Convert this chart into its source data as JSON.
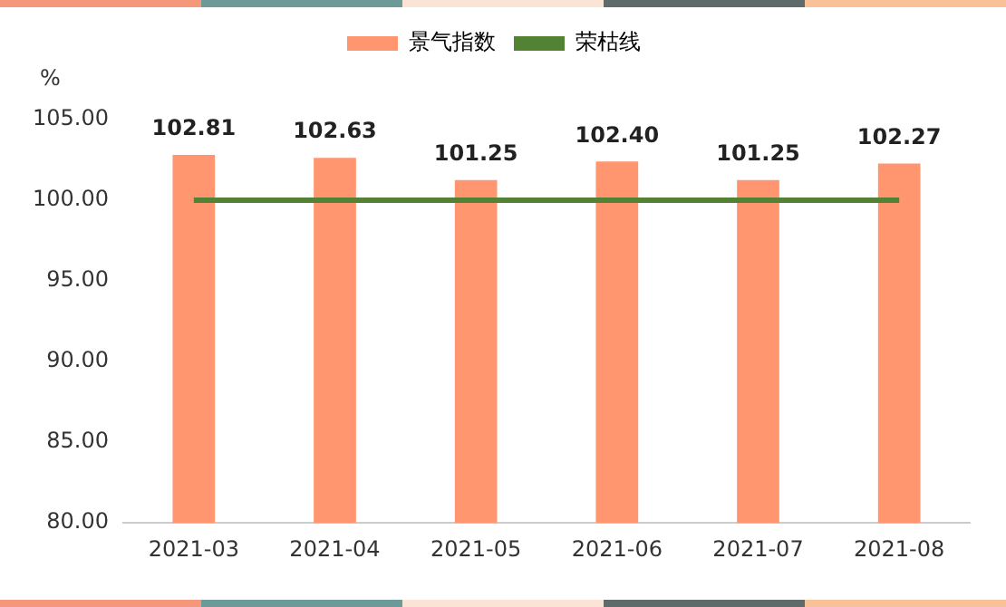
{
  "chart_data": {
    "type": "bar",
    "ylabel": "%",
    "categories": [
      "2021-03",
      "2021-04",
      "2021-05",
      "2021-06",
      "2021-07",
      "2021-08"
    ],
    "series": [
      {
        "name": "景气指数",
        "color": "#ff9670",
        "values": [
          102.81,
          102.63,
          101.25,
          102.4,
          101.25,
          102.27
        ],
        "value_labels": [
          "102.81",
          "102.63",
          "101.25",
          "102.40",
          "101.25",
          "102.27"
        ]
      },
      {
        "name": "荣枯线",
        "type": "line",
        "color": "#548235",
        "values": [
          100,
          100,
          100,
          100,
          100,
          100
        ]
      }
    ],
    "ylim": [
      80,
      105
    ],
    "yticks": [
      {
        "value": 80,
        "label": "80.00"
      },
      {
        "value": 85,
        "label": "85.00"
      },
      {
        "value": 90,
        "label": "90.00"
      },
      {
        "value": 95,
        "label": "95.00"
      },
      {
        "value": 100,
        "label": "100.00"
      },
      {
        "value": 105,
        "label": "105.00"
      }
    ],
    "grid": false,
    "legend": "top",
    "marker": "none"
  }
}
